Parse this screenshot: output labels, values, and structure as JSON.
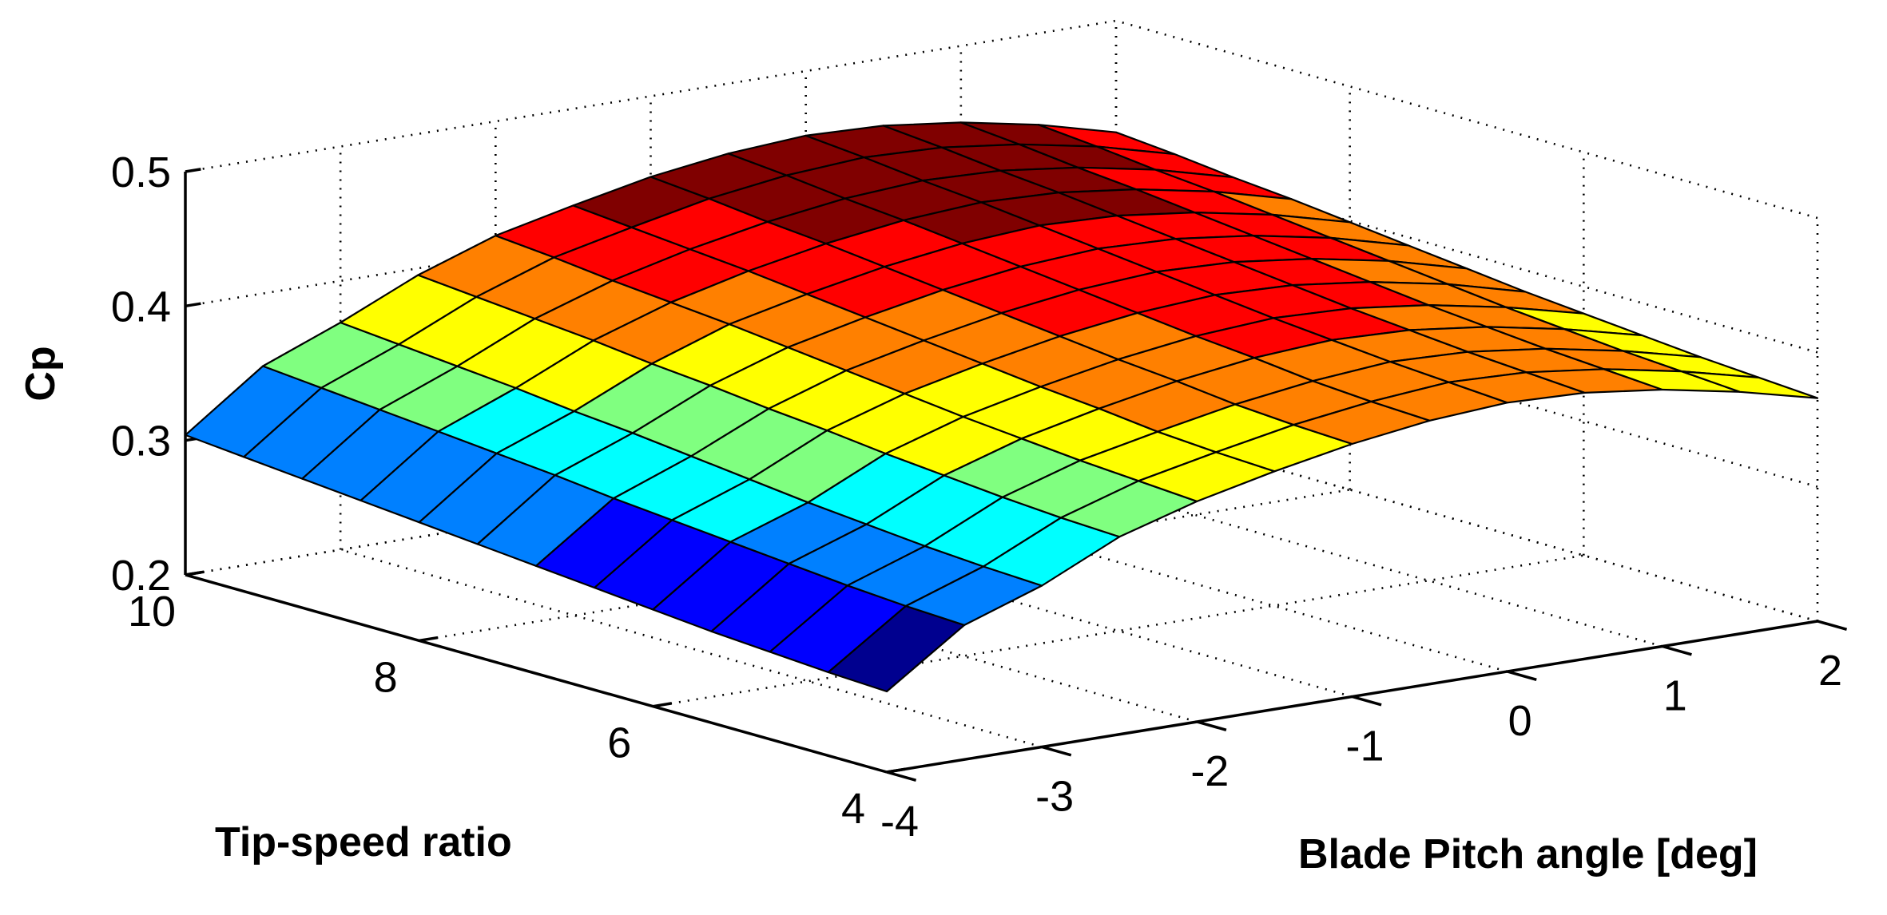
{
  "chart_data": {
    "type": "surface3d",
    "title": "",
    "xlabel": "Blade Pitch angle [deg]",
    "ylabel": "Tip-speed ratio",
    "zlabel": "Cp",
    "xlim": [
      -4,
      2
    ],
    "ylim": [
      4,
      10
    ],
    "zlim": [
      0.2,
      0.5
    ],
    "x_ticks": [
      "-4",
      "-3",
      "-2",
      "-1",
      "0",
      "1",
      "2"
    ],
    "y_ticks": [
      "4",
      "6",
      "8",
      "10"
    ],
    "z_ticks": [
      "0.2",
      "0.3",
      "0.4",
      "0.5"
    ],
    "grid": true,
    "colormap": "jet",
    "colormap_colors": [
      "#00008f",
      "#0000ff",
      "#0080ff",
      "#00ffff",
      "#80ff80",
      "#ffff00",
      "#ff8000",
      "#ff0000",
      "#800000"
    ],
    "pitch_angle": [
      -4,
      -3.5,
      -3,
      -2.5,
      -2,
      -1.5,
      -1,
      -0.5,
      0,
      0.5,
      1,
      1.5,
      2
    ],
    "tip_speed_ratio": [
      4,
      4.5,
      5,
      5.5,
      6,
      6.5,
      7,
      7.5,
      8,
      8.5,
      9,
      9.5,
      10
    ],
    "cp_values": [
      [
        0.26,
        0.3,
        0.32,
        0.347,
        0.364,
        0.377,
        0.388,
        0.396,
        0.4,
        0.398,
        0.391,
        0.38,
        0.366
      ],
      [
        0.262,
        0.302,
        0.322,
        0.349,
        0.367,
        0.379,
        0.39,
        0.398,
        0.403,
        0.401,
        0.394,
        0.383,
        0.369
      ],
      [
        0.265,
        0.305,
        0.325,
        0.352,
        0.37,
        0.382,
        0.393,
        0.401,
        0.406,
        0.404,
        0.397,
        0.386,
        0.372
      ],
      [
        0.268,
        0.309,
        0.329,
        0.356,
        0.374,
        0.387,
        0.398,
        0.406,
        0.41,
        0.408,
        0.401,
        0.39,
        0.376
      ],
      [
        0.272,
        0.313,
        0.333,
        0.36,
        0.378,
        0.391,
        0.402,
        0.41,
        0.414,
        0.412,
        0.405,
        0.394,
        0.38
      ],
      [
        0.276,
        0.317,
        0.338,
        0.365,
        0.383,
        0.396,
        0.407,
        0.415,
        0.419,
        0.417,
        0.41,
        0.399,
        0.384
      ],
      [
        0.28,
        0.321,
        0.343,
        0.369,
        0.388,
        0.401,
        0.412,
        0.42,
        0.424,
        0.422,
        0.415,
        0.404,
        0.389
      ],
      [
        0.284,
        0.326,
        0.348,
        0.374,
        0.393,
        0.406,
        0.417,
        0.425,
        0.429,
        0.427,
        0.42,
        0.409,
        0.394
      ],
      [
        0.288,
        0.33,
        0.352,
        0.378,
        0.398,
        0.411,
        0.422,
        0.43,
        0.434,
        0.432,
        0.425,
        0.414,
        0.399
      ],
      [
        0.292,
        0.334,
        0.357,
        0.383,
        0.402,
        0.416,
        0.427,
        0.435,
        0.439,
        0.437,
        0.43,
        0.419,
        0.404
      ],
      [
        0.296,
        0.338,
        0.361,
        0.387,
        0.406,
        0.42,
        0.431,
        0.439,
        0.443,
        0.441,
        0.434,
        0.423,
        0.408
      ],
      [
        0.3,
        0.342,
        0.365,
        0.391,
        0.411,
        0.424,
        0.436,
        0.444,
        0.448,
        0.446,
        0.439,
        0.428,
        0.413
      ],
      [
        0.304,
        0.346,
        0.369,
        0.395,
        0.415,
        0.428,
        0.44,
        0.448,
        0.452,
        0.45,
        0.443,
        0.432,
        0.417
      ]
    ]
  }
}
